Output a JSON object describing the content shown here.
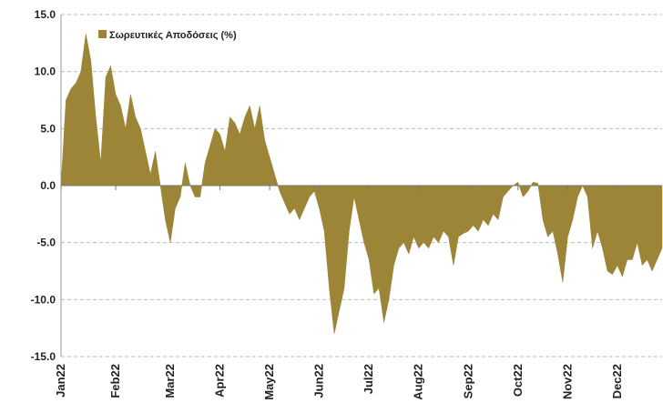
{
  "chart_data": {
    "type": "area",
    "categories": [
      "Jan22",
      null,
      null,
      null,
      null,
      null,
      null,
      null,
      null,
      null,
      null,
      "Feb22",
      null,
      null,
      null,
      null,
      null,
      null,
      null,
      null,
      null,
      null,
      "Mar22",
      null,
      null,
      null,
      null,
      null,
      null,
      null,
      null,
      null,
      "Apr22",
      null,
      null,
      null,
      null,
      null,
      null,
      null,
      null,
      null,
      "May22",
      null,
      null,
      null,
      null,
      null,
      null,
      null,
      null,
      null,
      "Jun22",
      null,
      null,
      null,
      null,
      null,
      null,
      null,
      null,
      null,
      "Jul22",
      null,
      null,
      null,
      null,
      null,
      null,
      null,
      null,
      null,
      "Aug22",
      null,
      null,
      null,
      null,
      null,
      null,
      null,
      null,
      null,
      "Sep22",
      null,
      null,
      null,
      null,
      null,
      null,
      null,
      null,
      null,
      "Oct22",
      null,
      null,
      null,
      null,
      null,
      null,
      null,
      null,
      null,
      "Nov22",
      null,
      null,
      null,
      null,
      null,
      null,
      null,
      null,
      null,
      "Dec22",
      null,
      null,
      null,
      null,
      null,
      null,
      null,
      null,
      null
    ],
    "series": [
      {
        "name": "Σωρευτικές Αποδόσεις (%)",
        "color": "#9c8537",
        "values": [
          0,
          7.5,
          8.5,
          9,
          10,
          13.3,
          11,
          6,
          2,
          9.5,
          10.5,
          8,
          7,
          5,
          8,
          6,
          5,
          3,
          1,
          3,
          0,
          -3,
          -5,
          -2,
          -1,
          2,
          0,
          -1,
          -1,
          2,
          3.5,
          5,
          4.5,
          3,
          6,
          5.5,
          4.5,
          6,
          7,
          5,
          7,
          4,
          2.5,
          1,
          -0.5,
          -1.5,
          -2.5,
          -2,
          -3,
          -2,
          -1,
          -0.5,
          -2,
          -4,
          -9,
          -13,
          -11,
          -9,
          -4,
          -1,
          -3,
          -5,
          -6.5,
          -9.5,
          -9,
          -12,
          -10,
          -7,
          -5.5,
          -5,
          -6,
          -4.5,
          -5.5,
          -5,
          -5.5,
          -4.5,
          -5,
          -4,
          -4.5,
          -7,
          -4.5,
          -4.2,
          -4,
          -3.5,
          -4,
          -3,
          -3.5,
          -2.5,
          -3,
          -1,
          -0.5,
          0,
          0.3,
          -1,
          -0.5,
          0.3,
          0.2,
          -3,
          -4.5,
          -4,
          -6,
          -8.5,
          -4.5,
          -3,
          -1,
          0,
          -1,
          -5.5,
          -4,
          -5.5,
          -7.5,
          -7.8,
          -7,
          -8,
          -6.5,
          -6.5,
          -5,
          -7,
          -6.5,
          -7.5,
          -6.5,
          -5.5
        ]
      }
    ],
    "ylim": [
      -15,
      15
    ],
    "yticks": [
      {
        "value": -15,
        "label": "-15.0"
      },
      {
        "value": -10,
        "label": "-10.0"
      },
      {
        "value": -5,
        "label": "-5.0"
      },
      {
        "value": 0,
        "label": "0.0"
      },
      {
        "value": 5,
        "label": "5.0"
      },
      {
        "value": 10,
        "label": "10.0"
      },
      {
        "value": 15,
        "label": "15.0"
      }
    ],
    "grid": true,
    "legend": "top-left"
  }
}
